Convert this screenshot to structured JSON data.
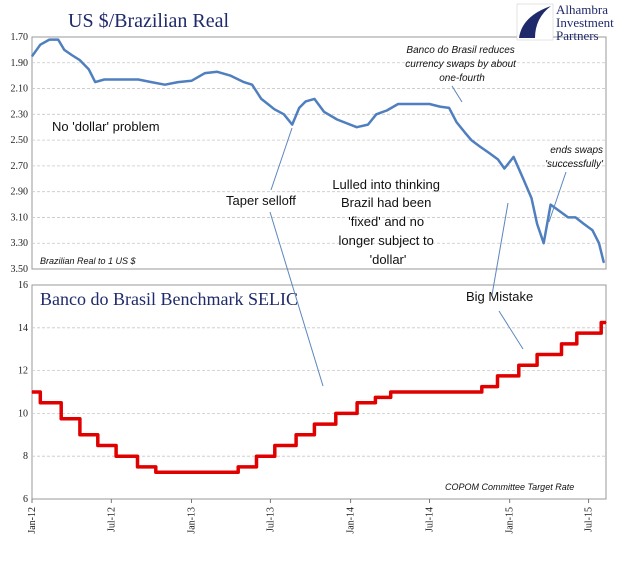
{
  "logo": {
    "line1": "Alhambra",
    "line2": "Investment",
    "line3": "Partners"
  },
  "chart_data": [
    {
      "type": "line",
      "title": "US $/Brazilian Real",
      "source_note": "Brazilian Real to 1 US $",
      "y_inverted": true,
      "ylim": [
        1.7,
        3.5
      ],
      "yticks": [
        "1.70",
        "1.90",
        "2.10",
        "2.30",
        "2.50",
        "2.70",
        "2.90",
        "3.10",
        "3.30",
        "3.50"
      ],
      "grid": true,
      "color": "#4f7fbf",
      "series": [
        {
          "x": [
            "2012-01-01",
            "2012-01-20",
            "2012-02-10",
            "2012-03-01",
            "2012-03-15",
            "2012-04-01",
            "2012-04-20",
            "2012-05-10",
            "2012-05-25",
            "2012-06-15",
            "2012-07-01",
            "2012-08-01",
            "2012-09-01",
            "2012-10-01",
            "2012-11-01",
            "2012-12-01",
            "2013-01-01",
            "2013-02-01",
            "2013-03-01",
            "2013-04-01",
            "2013-05-01",
            "2013-05-20",
            "2013-06-10",
            "2013-06-25",
            "2013-07-10",
            "2013-08-01",
            "2013-08-20",
            "2013-09-05",
            "2013-09-20",
            "2013-10-10",
            "2013-11-01",
            "2013-12-01",
            "2014-01-15",
            "2014-02-10",
            "2014-03-01",
            "2014-03-25",
            "2014-04-20",
            "2014-05-15",
            "2014-06-10",
            "2014-07-01",
            "2014-07-25",
            "2014-08-15",
            "2014-09-01",
            "2014-09-20",
            "2014-10-05",
            "2014-10-25",
            "2014-11-15",
            "2014-12-05",
            "2014-12-20",
            "2015-01-10",
            "2015-02-01",
            "2015-02-20",
            "2015-03-05",
            "2015-03-20",
            "2015-04-05",
            "2015-04-25",
            "2015-05-15",
            "2015-06-01",
            "2015-06-20",
            "2015-07-10",
            "2015-07-25",
            "2015-08-05"
          ],
          "y": [
            1.85,
            1.76,
            1.72,
            1.72,
            1.8,
            1.84,
            1.88,
            1.95,
            2.05,
            2.03,
            2.03,
            2.03,
            2.03,
            2.05,
            2.07,
            2.05,
            2.04,
            1.98,
            1.97,
            2.0,
            2.05,
            2.07,
            2.18,
            2.22,
            2.26,
            2.3,
            2.38,
            2.25,
            2.2,
            2.18,
            2.28,
            2.34,
            2.4,
            2.38,
            2.3,
            2.27,
            2.22,
            2.22,
            2.22,
            2.22,
            2.24,
            2.25,
            2.36,
            2.44,
            2.5,
            2.55,
            2.6,
            2.65,
            2.72,
            2.63,
            2.8,
            2.95,
            3.15,
            3.3,
            3.0,
            3.05,
            3.1,
            3.1,
            3.15,
            3.2,
            3.3,
            3.45
          ]
        }
      ],
      "annotations": [
        {
          "lines": [
            "No 'dollar' problem"
          ]
        },
        {
          "lines": [
            "Banco do Brasil reduces",
            "currency swaps by about",
            "one-fourth"
          ]
        },
        {
          "lines": [
            "ends swaps",
            "'successfully'"
          ]
        }
      ]
    },
    {
      "type": "line",
      "step": true,
      "title": "Banco do Brasil Benchmark SELIC",
      "source_note": "COPOM Committee Target Rate",
      "ylim": [
        6,
        16
      ],
      "yticks": [
        "6",
        "8",
        "10",
        "12",
        "14",
        "16"
      ],
      "grid": true,
      "color": "#e00000",
      "series": [
        {
          "x": [
            "2012-01-01",
            "2012-01-20",
            "2012-03-08",
            "2012-04-20",
            "2012-05-31",
            "2012-07-12",
            "2012-08-30",
            "2012-10-11",
            "2013-04-18",
            "2013-05-30",
            "2013-07-11",
            "2013-08-29",
            "2013-10-10",
            "2013-11-28",
            "2014-01-16",
            "2014-02-27",
            "2014-04-03",
            "2014-10-29",
            "2014-12-04",
            "2015-01-22",
            "2015-03-05",
            "2015-04-30",
            "2015-06-04",
            "2015-07-30",
            "2015-08-10"
          ],
          "y": [
            11.0,
            10.5,
            9.75,
            9.0,
            8.5,
            8.0,
            7.5,
            7.25,
            7.5,
            8.0,
            8.5,
            9.0,
            9.5,
            10.0,
            10.5,
            10.75,
            11.0,
            11.25,
            11.75,
            12.25,
            12.75,
            13.25,
            13.75,
            14.25,
            14.25
          ]
        }
      ],
      "annotations": [
        {
          "lines": [
            "Big Mistake"
          ]
        }
      ]
    }
  ],
  "shared_annotations": [
    {
      "lines": [
        "Taper selloff"
      ]
    },
    {
      "lines": [
        "Lulled into thinking",
        "Brazil had been",
        "'fixed' and no",
        "longer subject to",
        "'dollar'"
      ]
    }
  ],
  "xaxis": {
    "start": "2012-01-01",
    "end": "2015-08-10",
    "ticks": [
      {
        "date": "2012-01-01",
        "label": "Jan-12"
      },
      {
        "date": "2012-07-01",
        "label": "Jul-12"
      },
      {
        "date": "2013-01-01",
        "label": "Jan-13"
      },
      {
        "date": "2013-07-01",
        "label": "Jul-13"
      },
      {
        "date": "2014-01-01",
        "label": "Jan-14"
      },
      {
        "date": "2014-07-01",
        "label": "Jul-14"
      },
      {
        "date": "2015-01-01",
        "label": "Jan-15"
      },
      {
        "date": "2015-07-01",
        "label": "Jul-15"
      }
    ]
  }
}
